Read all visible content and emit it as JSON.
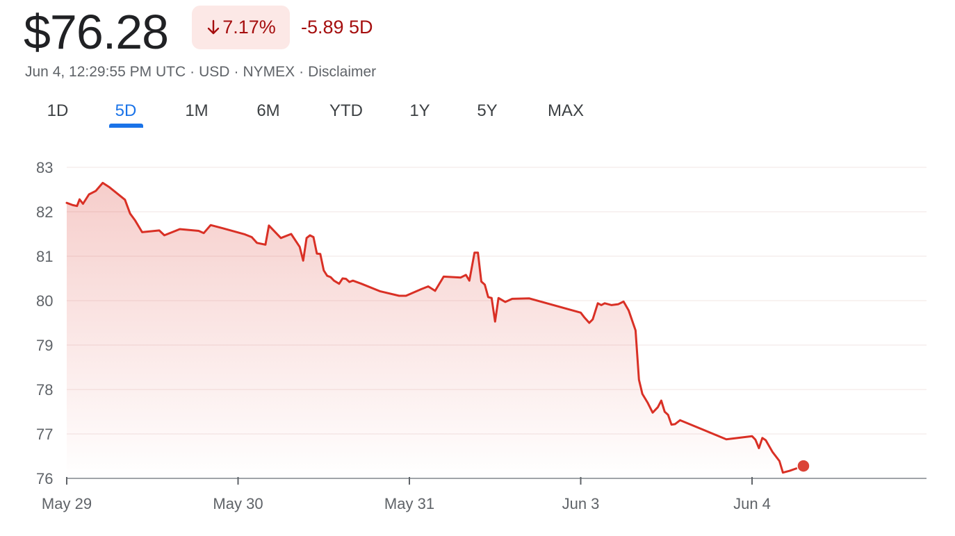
{
  "header": {
    "price": "$76.28",
    "change_percent": "7.17%",
    "change_direction_icon": "arrow-down-icon",
    "change_5d": "-5.89 5D",
    "loss_color": "#a50e0e",
    "meta_date": "Jun 4, 12:29:55 PM UTC",
    "meta_currency": "USD",
    "meta_exchange": "NYMEX",
    "meta_disclaimer": "Disclaimer"
  },
  "tabs": [
    {
      "label": "1D",
      "active": false
    },
    {
      "label": "5D",
      "active": true
    },
    {
      "label": "1M",
      "active": false
    },
    {
      "label": "6M",
      "active": false
    },
    {
      "label": "YTD",
      "active": false
    },
    {
      "label": "1Y",
      "active": false
    },
    {
      "label": "5Y",
      "active": false
    },
    {
      "label": "MAX",
      "active": false
    }
  ],
  "chart_data": {
    "type": "area",
    "title": "",
    "xlabel": "",
    "ylabel": "",
    "ylim": [
      76,
      83
    ],
    "yticks": [
      76,
      77,
      78,
      79,
      80,
      81,
      82,
      83
    ],
    "x_unit": "days",
    "x_tick_labels": [
      "May 29",
      "May 30",
      "May 31",
      "Jun 3",
      "Jun 4"
    ],
    "x_tick_positions": [
      0,
      1,
      2,
      3,
      4
    ],
    "xlim": [
      0,
      5
    ],
    "grid": true,
    "line_color": "#d93025",
    "fill_color": "#d93025",
    "marker": "end-point",
    "series": [
      {
        "values": [
          [
            0.0,
            82.2
          ],
          [
            0.035,
            82.15
          ],
          [
            0.06,
            82.13
          ],
          [
            0.075,
            82.28
          ],
          [
            0.095,
            82.18
          ],
          [
            0.13,
            82.39
          ],
          [
            0.17,
            82.47
          ],
          [
            0.21,
            82.65
          ],
          [
            0.25,
            82.55
          ],
          [
            0.285,
            82.44
          ],
          [
            0.34,
            82.27
          ],
          [
            0.37,
            81.96
          ],
          [
            0.4,
            81.8
          ],
          [
            0.44,
            81.54
          ],
          [
            0.54,
            81.58
          ],
          [
            0.57,
            81.47
          ],
          [
            0.66,
            81.61
          ],
          [
            0.77,
            81.57
          ],
          [
            0.8,
            81.52
          ],
          [
            0.84,
            81.7
          ],
          [
            0.91,
            81.63
          ],
          [
            1.04,
            81.49
          ],
          [
            1.08,
            81.43
          ],
          [
            1.11,
            81.3
          ],
          [
            1.16,
            81.26
          ],
          [
            1.18,
            81.69
          ],
          [
            1.25,
            81.41
          ],
          [
            1.31,
            81.5
          ],
          [
            1.36,
            81.21
          ],
          [
            1.38,
            80.9
          ],
          [
            1.4,
            81.41
          ],
          [
            1.42,
            81.47
          ],
          [
            1.44,
            81.43
          ],
          [
            1.46,
            81.06
          ],
          [
            1.48,
            81.05
          ],
          [
            1.5,
            80.68
          ],
          [
            1.52,
            80.56
          ],
          [
            1.54,
            80.53
          ],
          [
            1.56,
            80.45
          ],
          [
            1.59,
            80.38
          ],
          [
            1.61,
            80.5
          ],
          [
            1.63,
            80.49
          ],
          [
            1.65,
            80.42
          ],
          [
            1.67,
            80.45
          ],
          [
            1.72,
            80.38
          ],
          [
            1.83,
            80.21
          ],
          [
            1.94,
            80.11
          ],
          [
            1.98,
            80.11
          ],
          [
            2.07,
            80.26
          ],
          [
            2.11,
            80.32
          ],
          [
            2.15,
            80.22
          ],
          [
            2.2,
            80.54
          ],
          [
            2.3,
            80.52
          ],
          [
            2.33,
            80.58
          ],
          [
            2.35,
            80.45
          ],
          [
            2.38,
            81.08
          ],
          [
            2.4,
            81.08
          ],
          [
            2.42,
            80.43
          ],
          [
            2.44,
            80.36
          ],
          [
            2.46,
            80.08
          ],
          [
            2.48,
            80.06
          ],
          [
            2.5,
            79.53
          ],
          [
            2.52,
            80.06
          ],
          [
            2.56,
            79.97
          ],
          [
            2.6,
            80.04
          ],
          [
            2.7,
            80.05
          ],
          [
            3.0,
            79.73
          ],
          [
            3.02,
            79.63
          ],
          [
            3.05,
            79.5
          ],
          [
            3.07,
            79.58
          ],
          [
            3.1,
            79.94
          ],
          [
            3.12,
            79.9
          ],
          [
            3.14,
            79.94
          ],
          [
            3.18,
            79.9
          ],
          [
            3.22,
            79.92
          ],
          [
            3.25,
            79.98
          ],
          [
            3.28,
            79.78
          ],
          [
            3.32,
            79.33
          ],
          [
            3.34,
            78.22
          ],
          [
            3.36,
            77.9
          ],
          [
            3.39,
            77.71
          ],
          [
            3.42,
            77.48
          ],
          [
            3.45,
            77.6
          ],
          [
            3.47,
            77.75
          ],
          [
            3.49,
            77.5
          ],
          [
            3.51,
            77.43
          ],
          [
            3.53,
            77.21
          ],
          [
            3.55,
            77.22
          ],
          [
            3.58,
            77.31
          ],
          [
            3.85,
            76.88
          ],
          [
            4.0,
            76.95
          ],
          [
            4.02,
            76.87
          ],
          [
            4.04,
            76.68
          ],
          [
            4.06,
            76.91
          ],
          [
            4.08,
            76.86
          ],
          [
            4.12,
            76.59
          ],
          [
            4.16,
            76.39
          ],
          [
            4.18,
            76.13
          ],
          [
            4.22,
            76.17
          ],
          [
            4.3,
            76.28
          ]
        ]
      }
    ]
  }
}
